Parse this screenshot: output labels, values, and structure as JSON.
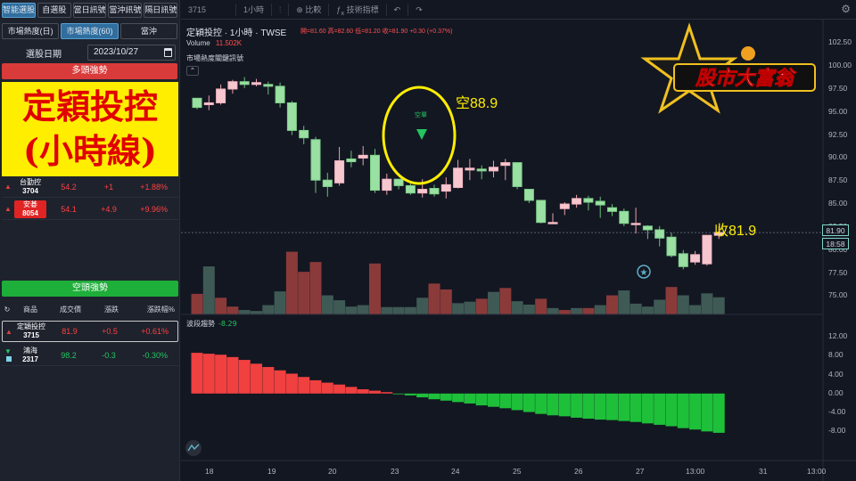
{
  "left": {
    "tabs": [
      "智能選股",
      "自選股",
      "當日訊號",
      "當沖訊號",
      "隔日訊號"
    ],
    "subtabs": [
      "市場熱度(日)",
      "市場熱度(60)",
      "當沖"
    ],
    "date_label": "選股日期",
    "date_value": "2023/10/27",
    "bull_banner": "多頭強勢",
    "overlay_line1": "定穎投控",
    "overlay_line2": "(小時線)",
    "bull_rows": [
      {
        "name_line1": "台勤控",
        "name_line2": "3704",
        "price": "54.2",
        "chg": "+1",
        "pct": "+1.88%"
      },
      {
        "name_line1": "安碁",
        "name_line2": "8054",
        "price": "54.1",
        "chg": "+4.9",
        "pct": "+9.96%"
      }
    ],
    "bear_banner": "空頭強勢",
    "table_headers": [
      "商品",
      "成交價",
      "漲跌",
      "漲跌幅%"
    ],
    "bear_rows": [
      {
        "name_line1": "定穎投控",
        "name_line2": "3715",
        "price": "81.9",
        "chg": "+0.5",
        "pct": "+0.61%"
      },
      {
        "name_line1": "鴻海",
        "name_line2": "2317",
        "price": "98.2",
        "chg": "-0.3",
        "pct": "-0.30%"
      }
    ]
  },
  "toolbar": {
    "symbol": "3715",
    "interval": "1小時",
    "compare": "比較",
    "indicators": "技術指標"
  },
  "chart": {
    "title": "定穎投控 · 1小時 · TWSE",
    "ohlc": "開=81.60 高=82.60 低=81.20 收=81.90 +0.30 (+0.37%)",
    "volume_label": "Volume",
    "volume_value": "11.502K",
    "study_label": "市場熱度關鍵訊號",
    "short_signal": "空單",
    "oscillator_label": "波段趨勢",
    "oscillator_value": "-8.29",
    "last_price": "81.90",
    "last_time": "18:58",
    "annot_short": "空88.9",
    "annot_close": "收81.9",
    "logo_text": "股市大富翁",
    "price_ticks": [
      "102.50",
      "100.00",
      "97.50",
      "95.00",
      "92.50",
      "90.00",
      "87.50",
      "85.00",
      "82.50",
      "80.00",
      "77.50",
      "75.00"
    ],
    "osc_ticks": [
      "12.00",
      "8.00",
      "4.00",
      "0.00",
      "-4.00",
      "-8.00"
    ],
    "x_ticks": [
      "18",
      "19",
      "20",
      "23",
      "24",
      "25",
      "26",
      "27",
      "13:00",
      "31",
      "13:00"
    ]
  },
  "chart_data": {
    "type": "candlestick",
    "candles": [
      [
        96.5,
        95.5,
        96.5,
        95.3
      ],
      [
        95.8,
        96.0,
        96.8,
        95.2
      ],
      [
        96.0,
        97.5,
        98.0,
        95.8
      ],
      [
        97.5,
        98.3,
        98.5,
        97.0
      ],
      [
        98.3,
        98.0,
        98.8,
        97.6
      ],
      [
        98.0,
        98.2,
        98.6,
        97.8
      ],
      [
        98.0,
        97.8,
        98.3,
        96.9
      ],
      [
        97.8,
        96.0,
        98.2,
        95.5
      ],
      [
        96.0,
        93.0,
        96.2,
        92.5
      ],
      [
        93.0,
        92.2,
        93.5,
        91.5
      ],
      [
        92.0,
        87.6,
        92.3,
        86.2
      ],
      [
        87.6,
        86.9,
        88.4,
        85.8
      ],
      [
        87.3,
        89.7,
        91.2,
        87.0
      ],
      [
        89.9,
        89.6,
        90.8,
        89.0
      ],
      [
        90.0,
        90.3,
        91.3,
        89.2
      ],
      [
        90.3,
        86.5,
        91.0,
        86.2
      ],
      [
        86.5,
        87.7,
        88.3,
        86.0
      ],
      [
        87.7,
        87.0,
        87.7,
        86.6
      ],
      [
        87.0,
        86.2,
        87.5,
        86.0
      ],
      [
        86.2,
        86.6,
        87.7,
        85.7
      ],
      [
        86.7,
        86.1,
        87.1,
        85.8
      ],
      [
        86.4,
        87.1,
        87.9,
        85.6
      ],
      [
        86.8,
        88.9,
        89.8,
        86.7
      ],
      [
        88.7,
        88.9,
        89.9,
        87.6
      ],
      [
        88.8,
        88.6,
        89.2,
        87.7
      ],
      [
        88.6,
        89.0,
        89.7,
        87.9
      ],
      [
        89.2,
        89.5,
        89.9,
        87.6
      ],
      [
        89.5,
        86.9,
        89.5,
        86.6
      ],
      [
        86.6,
        85.4,
        86.6,
        85.1
      ],
      [
        85.4,
        83.0,
        85.4,
        82.9
      ],
      [
        83.0,
        83.0,
        84.0,
        83.0
      ],
      [
        84.5,
        85.0,
        85.2,
        83.8
      ],
      [
        85.0,
        85.6,
        86.0,
        84.6
      ],
      [
        85.6,
        85.2,
        85.9,
        84.3
      ],
      [
        85.3,
        84.9,
        85.8,
        83.5
      ],
      [
        84.6,
        84.2,
        85.0,
        83.7
      ],
      [
        84.2,
        82.9,
        84.5,
        82.6
      ],
      [
        82.9,
        82.9,
        84.6,
        81.8
      ],
      [
        82.6,
        82.2,
        82.7,
        81.2
      ],
      [
        82.2,
        81.3,
        82.6,
        80.4
      ],
      [
        81.4,
        79.4,
        81.9,
        79.2
      ],
      [
        79.6,
        78.2,
        80.0,
        77.9
      ],
      [
        78.7,
        79.5,
        79.9,
        78.4
      ],
      [
        78.5,
        81.6,
        81.6,
        78.3
      ],
      [
        81.6,
        81.9,
        82.6,
        81.2
      ]
    ],
    "volume": [
      [
        4.2,
        "u"
      ],
      [
        9.8,
        "d"
      ],
      [
        3.4,
        "u"
      ],
      [
        1.6,
        "u"
      ],
      [
        0.9,
        "d"
      ],
      [
        0.7,
        "d"
      ],
      [
        1.9,
        "d"
      ],
      [
        4.7,
        "d"
      ],
      [
        12.8,
        "u"
      ],
      [
        8.7,
        "u"
      ],
      [
        10.7,
        "u"
      ],
      [
        3.9,
        "d"
      ],
      [
        2.9,
        "d"
      ],
      [
        1.6,
        "d"
      ],
      [
        1.9,
        "d"
      ],
      [
        10.4,
        "u"
      ],
      [
        1.5,
        "d"
      ],
      [
        1.5,
        "d"
      ],
      [
        1.5,
        "d"
      ],
      [
        3.4,
        "d"
      ],
      [
        6.3,
        "u"
      ],
      [
        5.1,
        "u"
      ],
      [
        2.3,
        "d"
      ],
      [
        2.6,
        "d"
      ],
      [
        3.2,
        "u"
      ],
      [
        4.6,
        "d"
      ],
      [
        5.4,
        "u"
      ],
      [
        2.7,
        "d"
      ],
      [
        2.0,
        "d"
      ],
      [
        3.2,
        "u"
      ],
      [
        1.3,
        "d"
      ],
      [
        0.9,
        "u"
      ],
      [
        1.3,
        "d"
      ],
      [
        1.3,
        "u"
      ],
      [
        1.9,
        "d"
      ],
      [
        3.9,
        "u"
      ],
      [
        4.9,
        "d"
      ],
      [
        2.2,
        "d"
      ],
      [
        1.6,
        "d"
      ],
      [
        3.0,
        "d"
      ],
      [
        5.6,
        "u"
      ],
      [
        3.9,
        "d"
      ],
      [
        1.9,
        "d"
      ],
      [
        4.3,
        "d"
      ],
      [
        3.5,
        "d"
      ]
    ],
    "oscillator": [
      8.6,
      8.4,
      8.2,
      7.7,
      7.1,
      6.3,
      5.6,
      4.9,
      4.2,
      3.5,
      2.8,
      2.3,
      1.9,
      1.4,
      0.9,
      0.6,
      0.3,
      -0.1,
      -0.4,
      -0.8,
      -1.2,
      -1.5,
      -1.8,
      -2.1,
      -2.5,
      -2.8,
      -3.1,
      -3.5,
      -3.9,
      -4.3,
      -4.6,
      -4.8,
      -5.1,
      -5.3,
      -5.5,
      -5.6,
      -5.8,
      -6.0,
      -6.3,
      -6.6,
      -6.9,
      -7.3,
      -7.6,
      -8.0,
      -8.29
    ],
    "price_range": [
      73.0,
      103.5
    ],
    "oscillator_range": [
      -10,
      12
    ]
  }
}
